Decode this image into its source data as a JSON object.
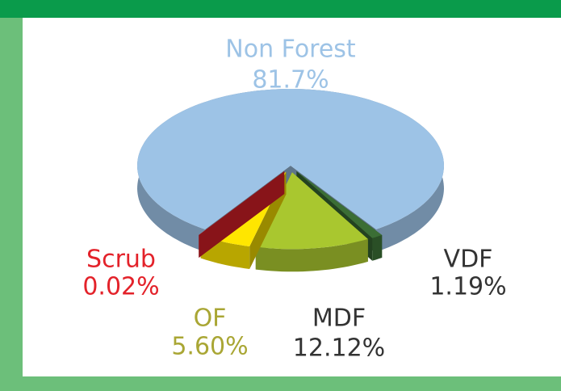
{
  "chart_data": {
    "type": "pie",
    "categories": [
      "Non Forest",
      "VDF",
      "MDF",
      "OF",
      "Scrub"
    ],
    "values": [
      81.7,
      1.19,
      12.12,
      5.6,
      0.02
    ],
    "value_labels": [
      "81.7%",
      "1.19%",
      "12.12%",
      "5.60%",
      "0.02%"
    ],
    "colors": [
      "#9dc3e6",
      "#3b6e35",
      "#a9c72f",
      "#ffe600",
      "#e3222a"
    ]
  }
}
